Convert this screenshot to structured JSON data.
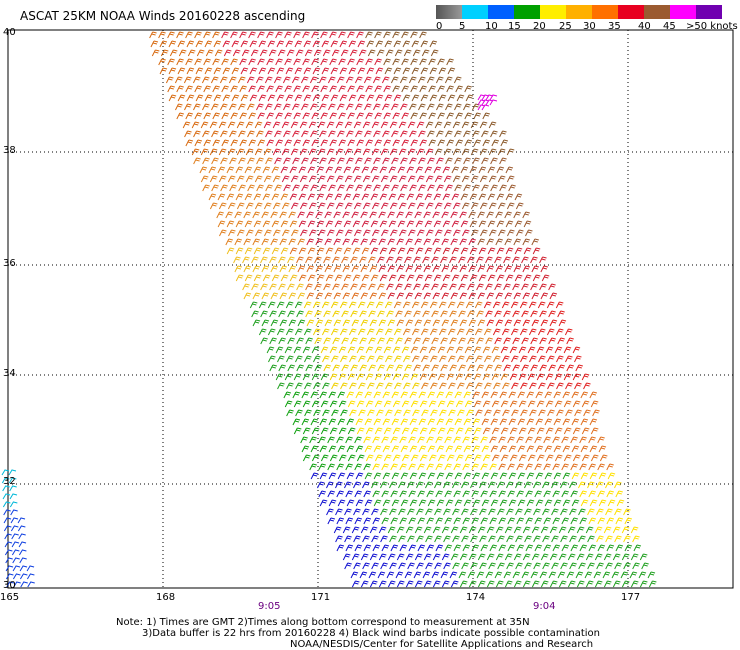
{
  "title": "ASCAT 25KM NOAA Winds 20160228 ascending",
  "scale": {
    "colors": [
      "#555555",
      "#a0a0a0",
      "#00c8ff",
      "#0078ff",
      "#0000e0",
      "#00a000",
      "#00d000",
      "#ffee00",
      "#ffb000",
      "#ff7000",
      "#e80000",
      "#c00020",
      "#8b5a2b",
      "#c07040",
      "#ff00ff",
      "#c000c0",
      "#6000a0",
      "#3a0070"
    ],
    "labels": [
      "0",
      "5",
      "10",
      "15",
      "20",
      "25",
      "30",
      "35",
      "40",
      "45",
      ">50 knots"
    ]
  },
  "latitudes": [
    "40",
    "38",
    "36",
    "34",
    "32",
    "30"
  ],
  "longitudes": [
    "165",
    "168",
    "171",
    "174",
    "177"
  ],
  "times": [
    "9:05",
    "9:04"
  ],
  "notes": [
    "Note: 1) Times are GMT 2)Times along bottom correspond to measurement at 35N",
    "3)Data buffer is 22 hrs from 20160228 4) Black wind barbs indicate possible contamination",
    "NOAA/NESDIS/Center for Satellite Applications and Research"
  ]
}
